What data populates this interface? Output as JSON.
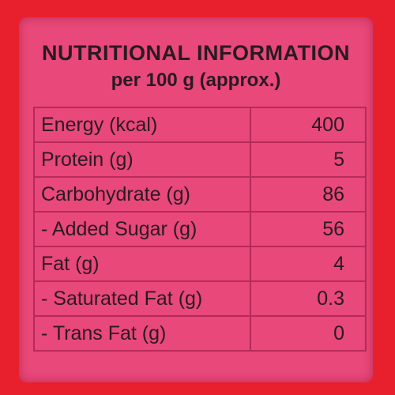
{
  "header": {
    "title": "NUTRITIONAL INFORMATION",
    "subtitle": "per 100 g (approx.)"
  },
  "table": {
    "rows": [
      [
        "Energy (kcal)",
        400
      ],
      [
        "Protein (g)",
        5
      ],
      [
        "Carbohydrate (g)",
        86
      ],
      [
        "- Added Sugar (g)",
        56
      ],
      [
        "Fat (g)",
        4
      ],
      [
        "- Saturated Fat (g)",
        0.3
      ],
      [
        "- Trans Fat (g)",
        0
      ]
    ]
  }
}
